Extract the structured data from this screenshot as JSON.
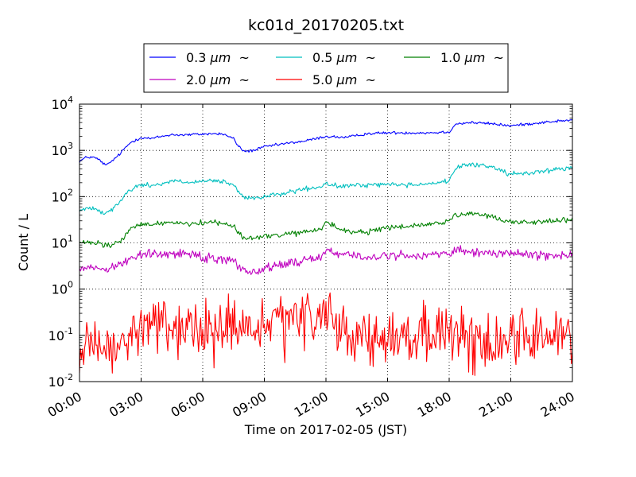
{
  "chart_data": {
    "type": "line",
    "title": "kc01d_20170205.txt",
    "xlabel": "Time on 2017-02-05 (JST)",
    "ylabel": "Count / L",
    "y_scale": "log",
    "ylim": [
      0.01,
      10000
    ],
    "xlim": [
      0,
      24
    ],
    "grid": true,
    "legend_position": "top-center, outside plot",
    "x_ticks": [
      {
        "value": 0,
        "label": "00:00"
      },
      {
        "value": 3,
        "label": "03:00"
      },
      {
        "value": 6,
        "label": "06:00"
      },
      {
        "value": 9,
        "label": "09:00"
      },
      {
        "value": 12,
        "label": "12:00"
      },
      {
        "value": 15,
        "label": "15:00"
      },
      {
        "value": 18,
        "label": "18:00"
      },
      {
        "value": 21,
        "label": "21:00"
      },
      {
        "value": 24,
        "label": "24:00"
      }
    ],
    "y_ticks": [
      {
        "value": 0.01,
        "base": "10",
        "exp": "-2"
      },
      {
        "value": 0.1,
        "base": "10",
        "exp": "-1"
      },
      {
        "value": 1,
        "base": "10",
        "exp": "0"
      },
      {
        "value": 10,
        "base": "10",
        "exp": "1"
      },
      {
        "value": 100,
        "base": "10",
        "exp": "2"
      },
      {
        "value": 1000,
        "base": "10",
        "exp": "3"
      },
      {
        "value": 10000,
        "base": "10",
        "exp": "4"
      }
    ],
    "series": [
      {
        "name": "0.3 μm ~",
        "label_main": "0.3",
        "label_unit": "μm",
        "label_tilde": "~",
        "color": "#0000ff",
        "noise": 0.015,
        "x": [
          0,
          0.3,
          0.6,
          0.9,
          1.1,
          1.3,
          1.6,
          1.9,
          2.2,
          2.5,
          3,
          3.5,
          4,
          4.5,
          5,
          5.5,
          6,
          6.5,
          7,
          7.5,
          7.7,
          8,
          8.5,
          9,
          10,
          11,
          12,
          13,
          14,
          15,
          16,
          17,
          18,
          18.3,
          19,
          20,
          21,
          22,
          23,
          24
        ],
        "y": [
          580,
          700,
          720,
          650,
          550,
          470,
          600,
          780,
          1100,
          1500,
          1900,
          1800,
          2000,
          2200,
          2150,
          2200,
          2250,
          2300,
          2250,
          1800,
          1300,
          950,
          1000,
          1200,
          1400,
          1600,
          2000,
          1900,
          2300,
          2400,
          2400,
          2400,
          2500,
          3700,
          4000,
          3800,
          3400,
          3800,
          4200,
          4500
        ]
      },
      {
        "name": "0.5 μm ~",
        "label_main": "0.5",
        "label_unit": "μm",
        "label_tilde": "~",
        "color": "#00bfbf",
        "noise": 0.025,
        "x": [
          0,
          0.4,
          0.7,
          1,
          1.3,
          1.6,
          2,
          2.3,
          2.6,
          3,
          3.5,
          4,
          4.5,
          5,
          5.5,
          6,
          6.5,
          7,
          7.5,
          7.7,
          8,
          8.5,
          9,
          10,
          11,
          11.8,
          12,
          12.3,
          13,
          14,
          15,
          16,
          17,
          18,
          18.3,
          19,
          20,
          20.5,
          21,
          22,
          23,
          24
        ],
        "y": [
          50,
          55,
          60,
          48,
          45,
          55,
          80,
          120,
          150,
          180,
          175,
          190,
          220,
          210,
          200,
          210,
          220,
          210,
          180,
          130,
          95,
          90,
          100,
          120,
          145,
          160,
          200,
          170,
          170,
          180,
          185,
          180,
          190,
          220,
          400,
          500,
          450,
          380,
          300,
          330,
          380,
          420
        ]
      },
      {
        "name": "1.0 μm ~",
        "label_main": "1.0",
        "label_unit": "μm",
        "label_tilde": "~",
        "color": "#008000",
        "noise": 0.03,
        "x": [
          0,
          0.5,
          1,
          1.3,
          1.6,
          2,
          2.5,
          3,
          3.5,
          4,
          4.5,
          5,
          5.5,
          6,
          6.5,
          7,
          7.5,
          7.8,
          8,
          8.5,
          9,
          10,
          11,
          11.8,
          12,
          12.4,
          13,
          14,
          15,
          16,
          17,
          18,
          18.3,
          19,
          20,
          21,
          22,
          23,
          24
        ],
        "y": [
          10,
          10,
          9.5,
          8.5,
          9,
          11,
          20,
          25,
          25,
          27,
          28,
          27,
          26,
          27,
          28,
          27,
          24,
          15,
          13,
          12.5,
          14,
          15,
          17,
          20,
          30,
          22,
          18,
          17,
          21,
          23,
          25,
          30,
          38,
          42,
          38,
          28,
          28,
          30,
          33
        ]
      },
      {
        "name": "2.0 μm ~",
        "label_main": "2.0",
        "label_unit": "μm",
        "label_tilde": "~",
        "color": "#bf00bf",
        "noise": 0.05,
        "x": [
          0,
          0.5,
          1,
          1.3,
          1.7,
          2,
          2.5,
          3,
          3.5,
          4,
          4.5,
          5,
          5.5,
          6,
          6.5,
          7,
          7.5,
          7.8,
          8,
          8.5,
          9,
          10,
          11,
          11.8,
          12,
          12.5,
          13,
          14,
          15,
          16,
          17,
          18,
          18.5,
          19,
          20,
          21,
          22,
          23,
          24
        ],
        "y": [
          3,
          3,
          2.8,
          2.7,
          3.2,
          3.6,
          4.5,
          5.5,
          5.8,
          5.5,
          6,
          6,
          5.8,
          5,
          4.8,
          4.5,
          4,
          3.2,
          2.6,
          2.4,
          2.7,
          3.5,
          4.2,
          5,
          7.5,
          6,
          5.5,
          4.8,
          5.2,
          5.3,
          5.6,
          6,
          6.5,
          6.2,
          6,
          6,
          5.6,
          5.4,
          5.5
        ]
      },
      {
        "name": "5.0 μm ~",
        "label_main": "5.0",
        "label_unit": "μm",
        "label_tilde": "~",
        "color": "#ff0000",
        "noise": 0.3,
        "x": [
          0,
          0.5,
          1,
          1.5,
          2,
          2.5,
          3,
          3.5,
          4,
          4.5,
          5,
          5.5,
          6,
          6.5,
          7,
          7.5,
          8,
          8.5,
          9,
          9.5,
          10,
          10.5,
          11,
          11.5,
          12,
          12.3,
          12.6,
          13,
          13.5,
          14,
          14.5,
          15,
          16,
          17,
          18,
          19,
          20,
          21,
          22,
          23,
          24
        ],
        "y": [
          0.04,
          0.05,
          0.04,
          0.04,
          0.06,
          0.1,
          0.15,
          0.18,
          0.17,
          0.15,
          0.14,
          0.13,
          0.12,
          0.12,
          0.14,
          0.14,
          0.13,
          0.14,
          0.15,
          0.16,
          0.16,
          0.18,
          0.2,
          0.25,
          0.35,
          0.3,
          0.18,
          0.12,
          0.1,
          0.08,
          0.07,
          0.07,
          0.08,
          0.1,
          0.11,
          0.08,
          0.07,
          0.09,
          0.1,
          0.1,
          0.1
        ]
      }
    ]
  }
}
